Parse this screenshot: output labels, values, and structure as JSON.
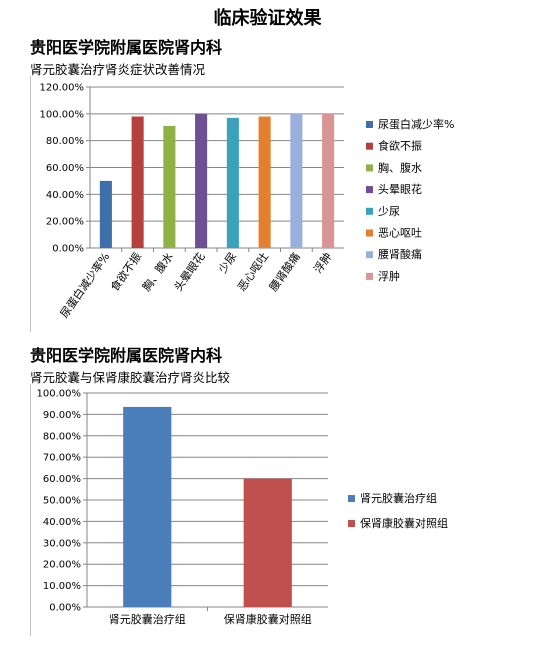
{
  "page": {
    "title": "临床验证效果"
  },
  "sections": [
    {
      "heading": "贵阳医学院附属医院肾内科",
      "subtitle": "肾元胶囊治疗肾炎症状改善情况"
    },
    {
      "heading": "贵阳医学院附属医院肾内科",
      "subtitle": "肾元胶囊与保肾康胶囊治疗肾炎比较"
    }
  ],
  "chart_data": [
    {
      "type": "bar",
      "title": "肾元胶囊治疗肾炎症状改善情况",
      "categories": [
        "尿蛋白减少率%",
        "食欲不振",
        "胸、腹水",
        "头晕眼花",
        "少尿",
        "恶心呕吐",
        "腰肾酸痛",
        "浮肿"
      ],
      "values": [
        50,
        98,
        91,
        100,
        97,
        98,
        100,
        100
      ],
      "colors": [
        "#3f6fa8",
        "#b5413f",
        "#8fb247",
        "#6d4f94",
        "#3ca1bb",
        "#e3802f",
        "#99b0dc",
        "#d99594"
      ],
      "legend": [
        "尿蛋白减少率%",
        "食欲不振",
        "胸、腹水",
        "头晕眼花",
        "少尿",
        "恶心呕吐",
        "腰肾酸痛",
        "浮肿"
      ],
      "legend_position": "right",
      "ylim": [
        0,
        120
      ],
      "yticks": [
        "0.00%",
        "20.00%",
        "40.00%",
        "60.00%",
        "80.00%",
        "100.00%",
        "120.00%"
      ],
      "grid": true
    },
    {
      "type": "bar",
      "title": "肾元胶囊与保肾康胶囊治疗肾炎比较",
      "categories": [
        "肾元胶囊治疗组",
        "保肾康胶囊对照组"
      ],
      "values": [
        93.5,
        60
      ],
      "colors": [
        "#4a7ebb",
        "#c0504d"
      ],
      "legend": [
        "肾元胶囊治疗组",
        "保肾康胶囊对照组"
      ],
      "legend_position": "right",
      "ylim": [
        0,
        100
      ],
      "yticks": [
        "0.00%",
        "10.00%",
        "20.00%",
        "30.00%",
        "40.00%",
        "50.00%",
        "60.00%",
        "70.00%",
        "80.00%",
        "90.00%",
        "100.00%"
      ],
      "grid": true
    }
  ]
}
